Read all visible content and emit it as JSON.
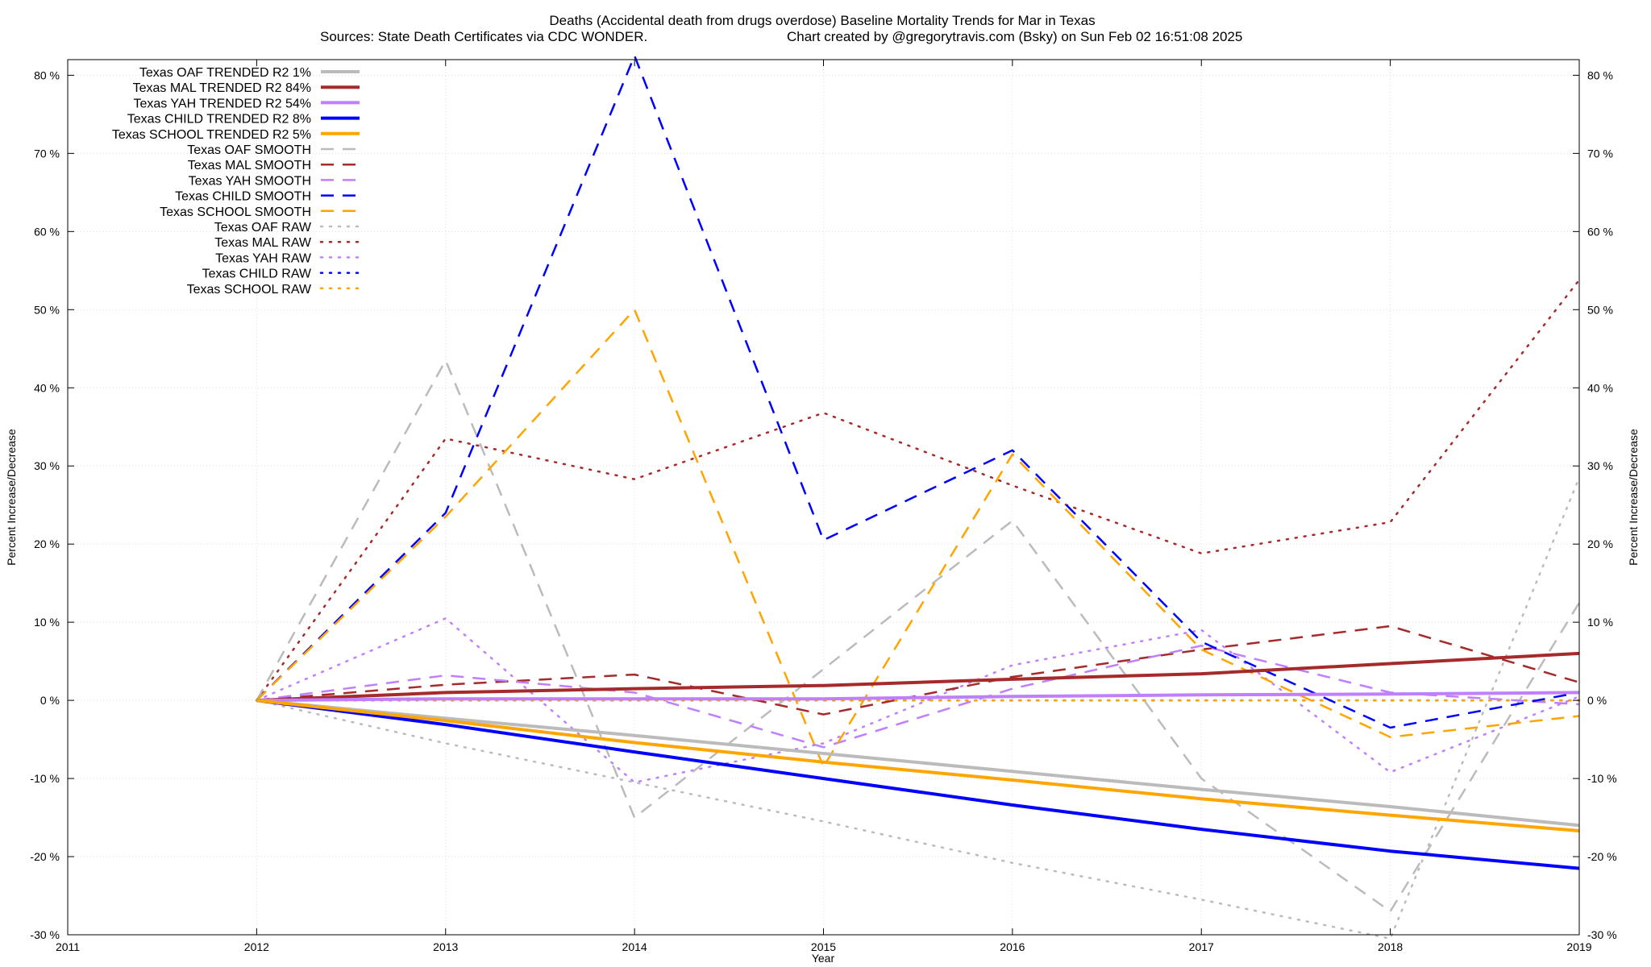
{
  "chart_data": {
    "type": "line",
    "title": "Deaths (Accidental death from drugs overdose)  Baseline Mortality Trends for Mar in Texas",
    "subtitle_left": "Sources: State Death Certificates via CDC WONDER.",
    "subtitle_right": "Chart created by @gregorytravis.com (Bsky) on Sun Feb 02 16:51:08 2025",
    "xlabel": "Year",
    "ylabel_left": "Percent Increase/Decrease",
    "ylabel_right": "Percent Increase/Decrease",
    "xlim": [
      2011,
      2019
    ],
    "ylim": [
      -30,
      82
    ],
    "x_ticks": [
      "2011",
      "2012",
      "2013",
      "2014",
      "2015",
      "2016",
      "2017",
      "2018",
      "2019"
    ],
    "y_ticks": [
      -30,
      -20,
      -10,
      0,
      10,
      20,
      30,
      40,
      50,
      60,
      70,
      80
    ],
    "y_tick_labels": [
      "-30 %",
      "-20 %",
      "-10 %",
      "0 %",
      "10 %",
      "20 %",
      "30 %",
      "40 %",
      "50 %",
      "60 %",
      "70 %",
      "80 %"
    ],
    "grid": true,
    "legend_position": "top-left",
    "x": [
      2012,
      2013,
      2014,
      2015,
      2016,
      2017,
      2018,
      2019
    ],
    "series": [
      {
        "name": "Texas OAF TRENDED R2  1%",
        "style": "solid",
        "color": "#bbbbbb",
        "values": [
          0,
          -2.3,
          -4.5,
          -6.8,
          -9.1,
          -11.4,
          -13.6,
          -16.0
        ]
      },
      {
        "name": "Texas MAL TRENDED R2  84%",
        "style": "solid",
        "color": "#a52a2a",
        "values": [
          0,
          1.0,
          1.5,
          1.9,
          2.7,
          3.4,
          4.7,
          6.0
        ]
      },
      {
        "name": "Texas YAH TRENDED R2  54%",
        "style": "solid",
        "color": "#bf7fff",
        "values": [
          0,
          0.2,
          0.2,
          0.2,
          0.5,
          0.7,
          0.8,
          1.0
        ]
      },
      {
        "name": "Texas CHILD TRENDED R2  8%",
        "style": "solid",
        "color": "#0000ff",
        "values": [
          0,
          -3.1,
          -6.6,
          -10.0,
          -13.4,
          -16.5,
          -19.3,
          -21.5
        ]
      },
      {
        "name": "Texas SCHOOL TRENDED R2  5%",
        "style": "solid",
        "color": "#ffa500",
        "values": [
          0,
          -2.6,
          -5.4,
          -7.9,
          -10.2,
          -12.6,
          -14.7,
          -16.7
        ]
      },
      {
        "name": "Texas OAF SMOOTH",
        "style": "dashed",
        "color": "#bbbbbb",
        "values": [
          0,
          43.5,
          -15.0,
          4.0,
          23.0,
          -10.0,
          -27.0,
          12.5
        ]
      },
      {
        "name": "Texas MAL SMOOTH",
        "style": "dashed",
        "color": "#a52a2a",
        "values": [
          0,
          2.0,
          3.3,
          -1.8,
          3.0,
          6.5,
          9.5,
          2.3
        ]
      },
      {
        "name": "Texas YAH SMOOTH",
        "style": "dashed",
        "color": "#bf7fff",
        "values": [
          0,
          3.2,
          1.0,
          -6.0,
          1.5,
          7.0,
          1.0,
          -0.5
        ]
      },
      {
        "name": "Texas CHILD SMOOTH",
        "style": "dashed",
        "color": "#0000ff",
        "values": [
          0,
          24.0,
          82.5,
          20.5,
          32.0,
          7.5,
          -3.5,
          1.0
        ]
      },
      {
        "name": "Texas SCHOOL SMOOTH",
        "style": "dashed",
        "color": "#ffa500",
        "values": [
          0,
          23.5,
          50.0,
          -8.5,
          31.5,
          6.5,
          -4.7,
          -2.0
        ]
      },
      {
        "name": "Texas OAF RAW",
        "style": "dotted",
        "color": "#bbbbbb",
        "values": [
          0,
          -5.5,
          -10.5,
          -15.5,
          -20.8,
          -25.5,
          -30.5,
          28.5
        ]
      },
      {
        "name": "Texas MAL RAW",
        "style": "dotted",
        "color": "#a52a2a",
        "values": [
          0,
          33.5,
          28.3,
          36.8,
          27.5,
          18.8,
          22.8,
          53.8
        ]
      },
      {
        "name": "Texas YAH RAW",
        "style": "dotted",
        "color": "#bf7fff",
        "values": [
          0,
          10.5,
          -10.5,
          -5.5,
          4.5,
          9.0,
          -9.2,
          0.5
        ]
      },
      {
        "name": "Texas CHILD RAW",
        "style": "dotted",
        "color": "#0000ff",
        "values": [
          0,
          0,
          0,
          0,
          0,
          0,
          0,
          0
        ]
      },
      {
        "name": "Texas SCHOOL RAW",
        "style": "dotted",
        "color": "#ffa500",
        "values": [
          0,
          0,
          0,
          0,
          0,
          0,
          0,
          0
        ]
      }
    ]
  }
}
